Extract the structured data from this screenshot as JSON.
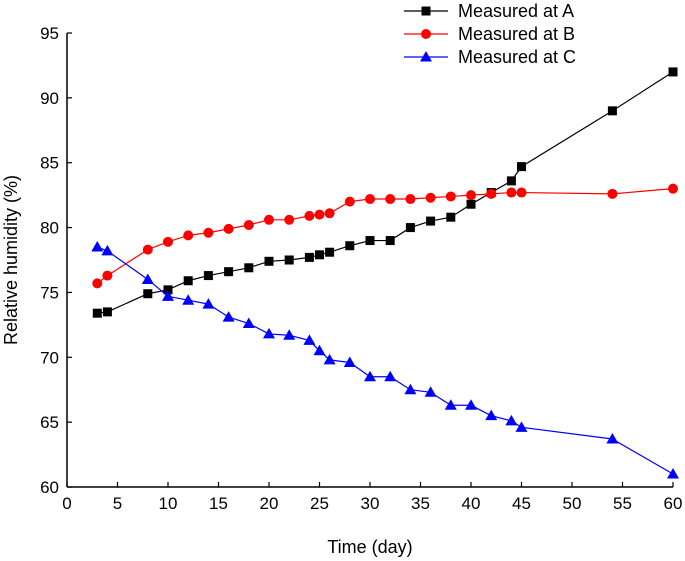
{
  "chart_data": {
    "type": "line",
    "title": "",
    "xlabel": "Time (day)",
    "ylabel": "Relative humidity (%)",
    "xlim": [
      0,
      60
    ],
    "ylim": [
      60,
      95
    ],
    "xticks": [
      0,
      5,
      10,
      15,
      20,
      25,
      30,
      35,
      40,
      45,
      50,
      55,
      60
    ],
    "yticks": [
      60,
      65,
      70,
      75,
      80,
      85,
      90,
      95
    ],
    "grid": false,
    "legend_position": "top-right",
    "series": [
      {
        "name": "Measured at A",
        "color": "#000000",
        "marker": "square",
        "x": [
          3,
          4,
          8,
          10,
          12,
          14,
          16,
          18,
          20,
          22,
          24,
          25,
          26,
          28,
          30,
          32,
          34,
          36,
          38,
          40,
          42,
          44,
          45,
          54,
          60
        ],
        "y": [
          73.4,
          73.5,
          74.9,
          75.2,
          75.9,
          76.3,
          76.6,
          76.9,
          77.4,
          77.5,
          77.7,
          77.9,
          78.1,
          78.6,
          79.0,
          79.0,
          80.0,
          80.5,
          80.8,
          81.8,
          82.7,
          83.6,
          84.7,
          89.0,
          92.0
        ]
      },
      {
        "name": "Measured at B",
        "color": "#ff0000",
        "marker": "circle",
        "x": [
          3,
          4,
          8,
          10,
          12,
          14,
          16,
          18,
          20,
          22,
          24,
          25,
          26,
          28,
          30,
          32,
          34,
          36,
          38,
          40,
          42,
          44,
          45,
          54,
          60
        ],
        "y": [
          75.7,
          76.3,
          78.3,
          78.9,
          79.4,
          79.6,
          79.9,
          80.2,
          80.6,
          80.6,
          80.9,
          81.0,
          81.1,
          82.0,
          82.2,
          82.2,
          82.2,
          82.3,
          82.4,
          82.5,
          82.6,
          82.7,
          82.7,
          82.6,
          83.0
        ]
      },
      {
        "name": "Measured at C",
        "color": "#0000ff",
        "marker": "triangle",
        "x": [
          3,
          4,
          8,
          10,
          12,
          14,
          16,
          18,
          20,
          22,
          24,
          25,
          26,
          28,
          30,
          32,
          34,
          36,
          38,
          40,
          42,
          44,
          45,
          54,
          60
        ],
        "y": [
          78.5,
          78.2,
          76.0,
          74.7,
          74.4,
          74.1,
          73.1,
          72.6,
          71.8,
          71.7,
          71.3,
          70.5,
          69.8,
          69.6,
          68.5,
          68.5,
          67.5,
          67.3,
          66.3,
          66.3,
          65.5,
          65.1,
          64.6,
          63.7,
          61.0
        ]
      }
    ]
  }
}
